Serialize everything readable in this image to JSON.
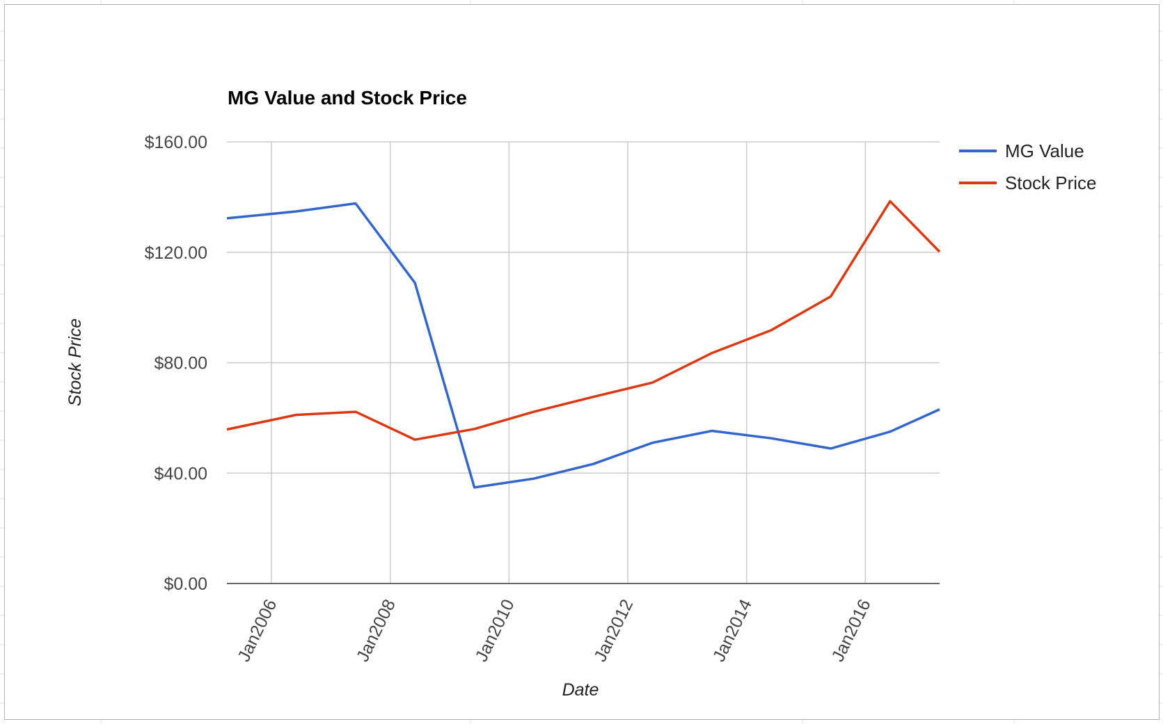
{
  "chart_data": {
    "type": "line",
    "title": "MG Value and Stock Price",
    "xlabel": "Date",
    "ylabel": "Stock Price",
    "ylim": [
      0,
      160
    ],
    "xlim": [
      "2005-04",
      "2017-04"
    ],
    "y_ticks": [
      "$0.00",
      "$40.00",
      "$80.00",
      "$120.00",
      "$160.00"
    ],
    "y_tick_values": [
      0,
      40,
      80,
      120,
      160
    ],
    "x_ticks": [
      "Jan2006",
      "Jan2008",
      "Jan2010",
      "Jan2012",
      "Jan2014",
      "Jan2016"
    ],
    "x_tick_dates": [
      "2006-01",
      "2008-01",
      "2010-01",
      "2012-01",
      "2014-01",
      "2016-01"
    ],
    "x": [
      "2005-04",
      "2006-06",
      "2007-06",
      "2008-06",
      "2009-06",
      "2010-06",
      "2011-06",
      "2012-06",
      "2013-06",
      "2014-06",
      "2015-06",
      "2016-06",
      "2017-04"
    ],
    "series": [
      {
        "name": "MG Value",
        "color": "#3366cc",
        "values": [
          132.3,
          134.8,
          137.7,
          108.9,
          34.8,
          38.0,
          43.3,
          51.0,
          55.3,
          52.6,
          48.9,
          55.0,
          63.1
        ]
      },
      {
        "name": "Stock Price",
        "color": "#dc3912",
        "values": [
          55.8,
          61.1,
          62.2,
          52.1,
          56.0,
          62.2,
          67.6,
          72.8,
          83.5,
          91.8,
          104.0,
          138.5,
          120.2
        ]
      }
    ],
    "grid": true,
    "legend": "right"
  },
  "colors": {
    "gridline": "#cccccc",
    "baseline": "#333333",
    "frame_border": "#b0b0b0"
  }
}
